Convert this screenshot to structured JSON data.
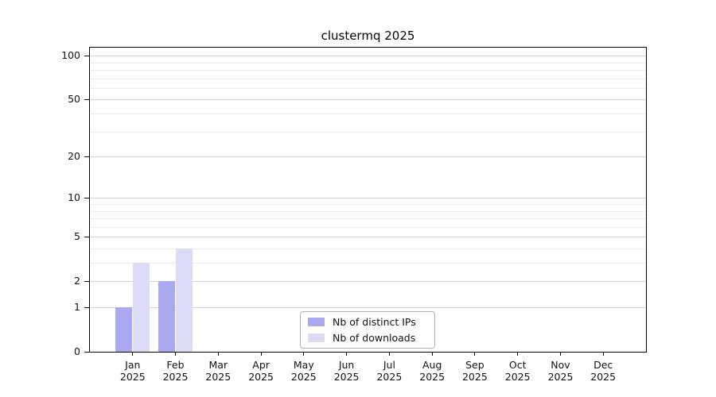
{
  "chart_data": {
    "type": "bar",
    "title": "clustermq 2025",
    "year": "2025",
    "categories": [
      "Jan",
      "Feb",
      "Mar",
      "Apr",
      "May",
      "Jun",
      "Jul",
      "Aug",
      "Sep",
      "Oct",
      "Nov",
      "Dec"
    ],
    "series": [
      {
        "name": "Nb of distinct IPs",
        "color": "#a9a9f1",
        "values": [
          1,
          2,
          0,
          0,
          0,
          0,
          0,
          0,
          0,
          0,
          0,
          0
        ]
      },
      {
        "name": "Nb of downloads",
        "color": "#dcdcf7",
        "values": [
          3,
          4,
          0,
          0,
          0,
          0,
          0,
          0,
          0,
          0,
          0,
          0
        ]
      }
    ],
    "xlabel": "",
    "ylabel": "",
    "y_scale": "log1p",
    "ylim": [
      0,
      115
    ],
    "y_major_ticks": [
      100,
      50,
      20,
      10,
      5,
      2,
      1,
      0
    ],
    "y_minor_gridlines": [
      90,
      80,
      70,
      60,
      40,
      30,
      9,
      8,
      7,
      6,
      4,
      3
    ],
    "grid": "horizontal, major and minor",
    "legend_position": "lower center"
  }
}
